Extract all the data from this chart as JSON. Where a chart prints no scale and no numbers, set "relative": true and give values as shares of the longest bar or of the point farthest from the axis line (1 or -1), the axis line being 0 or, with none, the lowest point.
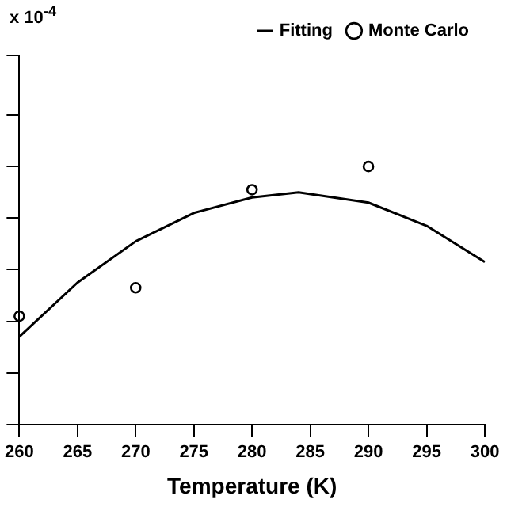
{
  "chart_data": {
    "type": "scatter",
    "xlabel": "Temperature (K)",
    "annotations": [
      "x 10$^{-4}$"
    ],
    "relative": true,
    "xlim": [
      260,
      300
    ],
    "xticks": [
      260,
      265,
      270,
      275,
      280,
      285,
      290,
      295,
      300
    ],
    "tick_labels": "x",
    "grid": false,
    "legend": "top right",
    "series": [
      {
        "name": "Fitting",
        "type": "line",
        "color": "#000000",
        "marker": "none",
        "x": [
          260,
          265,
          270,
          275,
          280,
          284,
          290,
          295,
          300
        ],
        "values": [
          0.34,
          0.55,
          0.71,
          0.82,
          0.88,
          0.9,
          0.86,
          0.77,
          0.63
        ]
      },
      {
        "name": "Monte Carlo",
        "color": "#000000",
        "marker": "circle",
        "x": [
          260,
          270,
          280,
          290
        ],
        "values": [
          0.42,
          0.53,
          0.91,
          1
        ]
      }
    ]
  }
}
